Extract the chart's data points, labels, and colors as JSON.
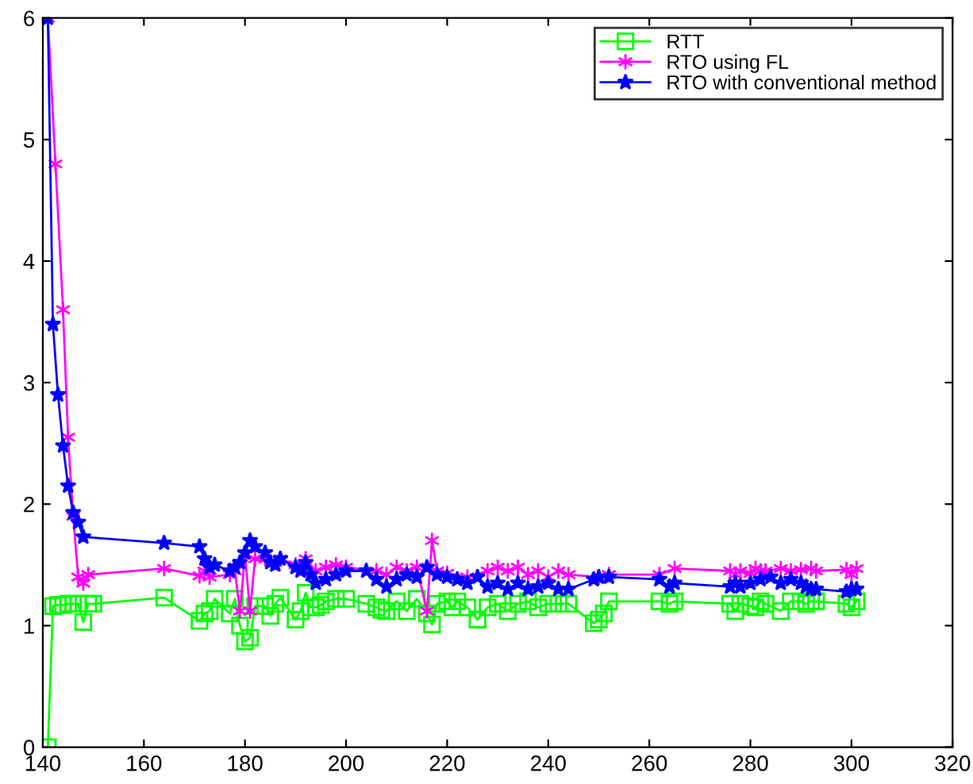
{
  "chart_data": {
    "type": "line",
    "xlim": [
      140,
      320
    ],
    "xticks": [
      140,
      160,
      180,
      200,
      220,
      240,
      260,
      280,
      300,
      320
    ],
    "ylim": [
      0,
      6
    ],
    "yticks": [
      0,
      1,
      2,
      3,
      4,
      5,
      6
    ],
    "grid": false,
    "legend": "top right",
    "series": [
      {
        "name": "RTT",
        "color": "#00ff00",
        "marker": "square",
        "x": [
          141,
          142,
          143,
          144,
          145,
          146,
          147,
          148,
          149,
          150,
          164,
          171,
          172,
          173,
          174,
          177,
          178,
          179,
          180,
          181,
          182,
          184,
          185,
          186,
          187,
          190,
          191,
          192,
          193,
          194,
          195,
          196,
          198,
          200,
          204,
          206,
          207,
          208,
          210,
          212,
          214,
          216,
          217,
          218,
          220,
          221,
          222,
          224,
          226,
          228,
          230,
          232,
          234,
          236,
          238,
          240,
          242,
          244,
          249,
          250,
          251,
          252,
          262,
          264,
          265,
          276,
          277,
          278,
          280,
          281,
          282,
          283,
          286,
          288,
          290,
          291,
          292,
          293,
          299,
          300,
          301
        ],
        "values": [
          0,
          1.16,
          1.17,
          1.17,
          1.18,
          1.18,
          1.18,
          1.03,
          1.18,
          1.18,
          1.23,
          1.04,
          1.1,
          1.12,
          1.22,
          1.1,
          1.22,
          1.0,
          0.87,
          0.9,
          1.16,
          1.16,
          1.08,
          1.18,
          1.23,
          1.05,
          1.12,
          1.27,
          1.15,
          1.15,
          1.17,
          1.2,
          1.22,
          1.22,
          1.18,
          1.15,
          1.13,
          1.12,
          1.2,
          1.12,
          1.22,
          1.1,
          1.01,
          1.18,
          1.2,
          1.15,
          1.2,
          1.15,
          1.05,
          1.15,
          1.18,
          1.12,
          1.18,
          1.2,
          1.15,
          1.18,
          1.18,
          1.18,
          1.02,
          1.05,
          1.1,
          1.2,
          1.2,
          1.18,
          1.2,
          1.18,
          1.12,
          1.18,
          1.16,
          1.15,
          1.2,
          1.18,
          1.12,
          1.2,
          1.2,
          1.18,
          1.2,
          1.2,
          1.18,
          1.15,
          1.2
        ]
      },
      {
        "name": "RTO using FL",
        "color": "#ff00ff",
        "marker": "cross",
        "x": [
          141,
          142.5,
          144,
          145,
          146,
          147,
          148,
          149,
          164,
          171,
          172,
          173,
          177,
          178,
          179,
          180,
          181,
          182,
          184,
          186,
          187,
          190,
          192,
          194,
          196,
          198,
          200,
          206,
          208,
          210,
          212,
          214,
          216,
          217,
          218,
          220,
          224,
          228,
          230,
          232,
          234,
          236,
          238,
          240,
          242,
          244,
          250,
          252,
          262,
          265,
          276,
          277,
          278,
          280,
          281,
          282,
          283,
          286,
          288,
          290,
          292,
          293,
          299,
          300,
          301
        ],
        "values": [
          6,
          4.8,
          3.6,
          2.55,
          1.9,
          1.4,
          1.35,
          1.42,
          1.47,
          1.41,
          1.45,
          1.4,
          1.42,
          1.45,
          1.12,
          1.58,
          1.12,
          1.55,
          1.55,
          1.52,
          1.55,
          1.5,
          1.55,
          1.45,
          1.48,
          1.5,
          1.48,
          1.45,
          1.42,
          1.48,
          1.45,
          1.48,
          1.12,
          1.7,
          1.45,
          1.43,
          1.4,
          1.45,
          1.48,
          1.45,
          1.48,
          1.42,
          1.45,
          1.4,
          1.45,
          1.42,
          1.4,
          1.42,
          1.42,
          1.47,
          1.45,
          1.42,
          1.45,
          1.43,
          1.47,
          1.45,
          1.45,
          1.47,
          1.45,
          1.46,
          1.47,
          1.45,
          1.46,
          1.42,
          1.47
        ]
      },
      {
        "name": "RTO with conventional method",
        "color": "#0000ff",
        "marker": "star",
        "x": [
          141,
          142,
          143,
          144,
          145,
          146,
          147,
          148,
          164,
          171,
          172,
          173,
          174,
          177,
          178,
          179,
          180,
          181,
          182,
          184,
          185,
          186,
          187,
          190,
          191,
          192,
          193,
          194,
          196,
          198,
          200,
          204,
          206,
          208,
          210,
          212,
          214,
          216,
          218,
          220,
          222,
          224,
          226,
          228,
          230,
          232,
          234,
          236,
          238,
          240,
          242,
          244,
          249,
          250,
          252,
          262,
          264,
          265,
          276,
          277,
          278,
          280,
          282,
          284,
          286,
          288,
          290,
          291,
          292,
          293,
          299,
          300,
          301
        ],
        "values": [
          6,
          3.48,
          2.9,
          2.48,
          2.15,
          1.93,
          1.85,
          1.73,
          1.68,
          1.65,
          1.55,
          1.48,
          1.5,
          1.45,
          1.48,
          1.52,
          1.6,
          1.7,
          1.65,
          1.6,
          1.52,
          1.5,
          1.55,
          1.48,
          1.45,
          1.52,
          1.42,
          1.35,
          1.38,
          1.42,
          1.45,
          1.45,
          1.38,
          1.32,
          1.38,
          1.42,
          1.4,
          1.48,
          1.42,
          1.4,
          1.38,
          1.35,
          1.4,
          1.32,
          1.35,
          1.3,
          1.35,
          1.3,
          1.32,
          1.35,
          1.3,
          1.3,
          1.38,
          1.4,
          1.4,
          1.38,
          1.32,
          1.35,
          1.32,
          1.35,
          1.32,
          1.35,
          1.38,
          1.4,
          1.35,
          1.38,
          1.35,
          1.32,
          1.3,
          1.3,
          1.28,
          1.3,
          1.3
        ]
      }
    ]
  }
}
